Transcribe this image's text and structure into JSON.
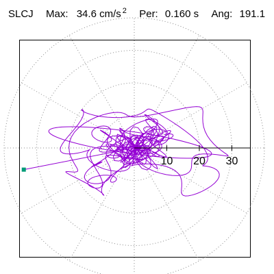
{
  "header": {
    "station": "SLCJ",
    "max_label": "Max:",
    "max_value": "34.6 cm/s",
    "max_sup": "2",
    "per_label": "Per:",
    "per_value": "0.160 s",
    "ang_label": "Ang:",
    "ang_value": "191.1"
  },
  "chart_data": {
    "type": "polar",
    "title": "SLCJ  Max: 34.6 cm/s2  Per: 0.160 s  Ang: 191.1",
    "radial_ticks": [
      10,
      20,
      30
    ],
    "rmax": 40,
    "grid": true,
    "angle_spokes_deg": [
      0,
      30,
      60,
      90,
      120,
      150,
      180,
      210,
      240,
      270,
      300,
      330
    ],
    "max_value": 34.6,
    "max_angle_deg": 191.1,
    "colors": {
      "trace": "#9400d3",
      "marker": "#009c77",
      "grid": "#888888"
    }
  }
}
